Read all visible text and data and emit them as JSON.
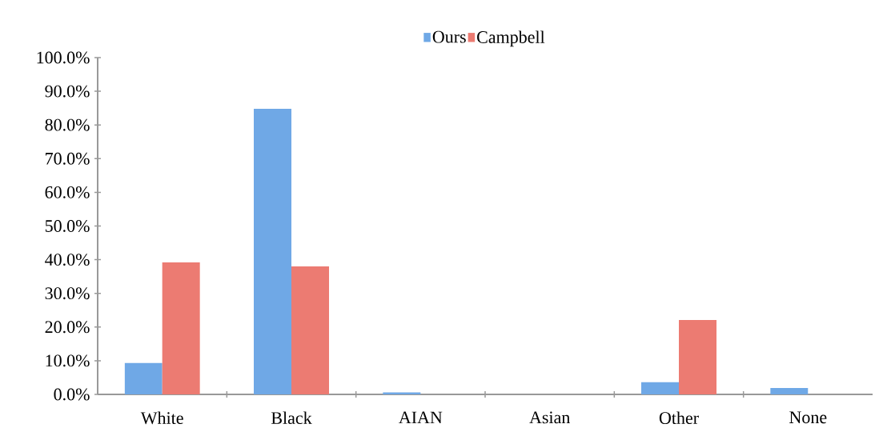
{
  "chart_data": {
    "type": "bar",
    "categories": [
      "White",
      "Black",
      "AIAN",
      "Asian",
      "Other",
      "None"
    ],
    "series": [
      {
        "name": "Ours",
        "color": "#6fa8e6",
        "values": [
          9.3,
          84.8,
          0.6,
          0,
          3.6,
          1.9
        ]
      },
      {
        "name": "Campbell",
        "color": "#ec7b72",
        "values": [
          39.2,
          38.0,
          0,
          0,
          22.1,
          0
        ]
      }
    ],
    "ylim": [
      0,
      100
    ],
    "yticks": [
      {
        "value": 0,
        "label": "0.0%"
      },
      {
        "value": 10,
        "label": "10.0%"
      },
      {
        "value": 20,
        "label": "20.0%"
      },
      {
        "value": 30,
        "label": "30.0%"
      },
      {
        "value": 40,
        "label": "40.0%"
      },
      {
        "value": 50,
        "label": "50.0%"
      },
      {
        "value": 60,
        "label": "60.0%"
      },
      {
        "value": 70,
        "label": "70.0%"
      },
      {
        "value": 80,
        "label": "80.0%"
      },
      {
        "value": 90,
        "label": "90.0%"
      },
      {
        "value": 100,
        "label": "100.0%"
      }
    ],
    "grid": false,
    "legend": "top"
  }
}
